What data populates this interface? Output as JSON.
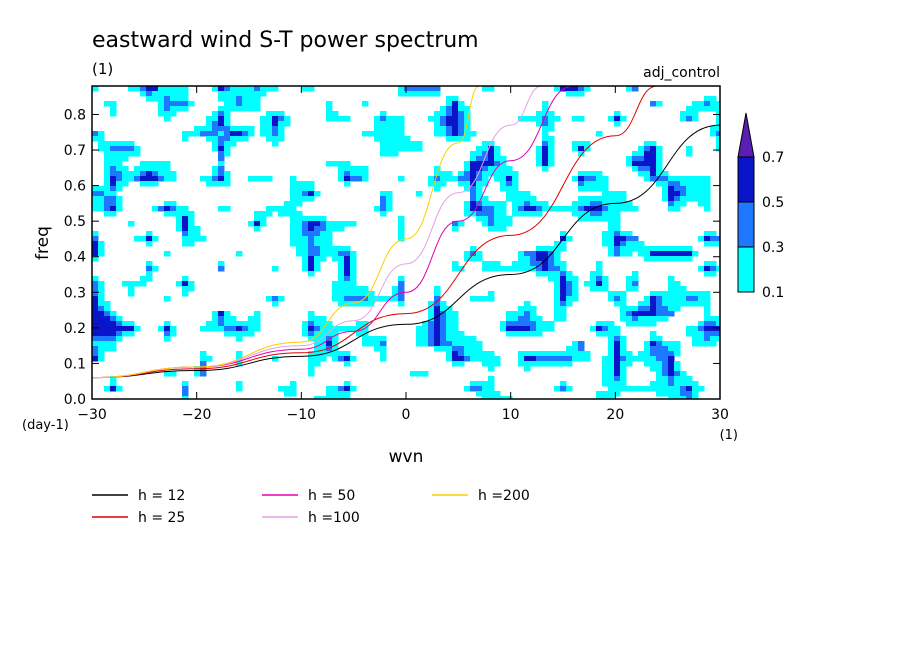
{
  "chart_data": {
    "type": "heatmap",
    "title": "eastward wind S-T power spectrum",
    "subtitle_left": "(1)",
    "subtitle_right": "adj_control",
    "xlabel": "wvn",
    "ylabel": "freq",
    "x_unit": "(1)",
    "y_unit": "(day-1)",
    "xlim": [
      -30,
      30
    ],
    "ylim": [
      0,
      0.88
    ],
    "xticks": [
      -30,
      -20,
      -10,
      0,
      10,
      20,
      30
    ],
    "yticks": [
      0.0,
      0.1,
      0.2,
      0.3,
      0.4,
      0.5,
      0.6,
      0.7,
      0.8
    ],
    "contour_levels": [
      0.1,
      0.3,
      0.5,
      0.7
    ],
    "contour_colors": [
      "#00ffff",
      "#1e78ff",
      "#0a14c8",
      "#5a1eb4"
    ],
    "legend_items": [
      {
        "label": "h = 12",
        "h": 12,
        "color": "#000000"
      },
      {
        "label": "h = 25",
        "h": 25,
        "color": "#e00000"
      },
      {
        "label": "h = 50",
        "h": 50,
        "color": "#e000b4"
      },
      {
        "label": "h =100",
        "h": 100,
        "color": "#e6a0e6"
      },
      {
        "label": "h =200",
        "h": 200,
        "color": "#ffcc00"
      }
    ],
    "curves": [
      {
        "h": 12,
        "points": [
          [
            -30,
            0.06
          ],
          [
            -20,
            0.08
          ],
          [
            -10,
            0.12
          ],
          [
            0,
            0.21
          ],
          [
            10,
            0.35
          ],
          [
            20,
            0.55
          ],
          [
            30,
            0.77
          ]
        ]
      },
      {
        "h": 25,
        "points": [
          [
            -30,
            0.06
          ],
          [
            -20,
            0.085
          ],
          [
            -10,
            0.13
          ],
          [
            0,
            0.24
          ],
          [
            10,
            0.46
          ],
          [
            20,
            0.74
          ],
          [
            24,
            0.88
          ]
        ]
      },
      {
        "h": 50,
        "points": [
          [
            -30,
            0.06
          ],
          [
            -20,
            0.09
          ],
          [
            -10,
            0.14
          ],
          [
            -5,
            0.19
          ],
          [
            0,
            0.3
          ],
          [
            5,
            0.5
          ],
          [
            10,
            0.67
          ],
          [
            16,
            0.88
          ]
        ]
      },
      {
        "h": 100,
        "points": [
          [
            -30,
            0.06
          ],
          [
            -20,
            0.09
          ],
          [
            -10,
            0.15
          ],
          [
            -5,
            0.22
          ],
          [
            0,
            0.38
          ],
          [
            5,
            0.58
          ],
          [
            10,
            0.77
          ],
          [
            13,
            0.88
          ]
        ]
      },
      {
        "h": 200,
        "points": [
          [
            -30,
            0.06
          ],
          [
            -20,
            0.09
          ],
          [
            -10,
            0.16
          ],
          [
            -5,
            0.27
          ],
          [
            0,
            0.45
          ],
          [
            5,
            0.72
          ],
          [
            7,
            0.88
          ]
        ]
      }
    ]
  }
}
